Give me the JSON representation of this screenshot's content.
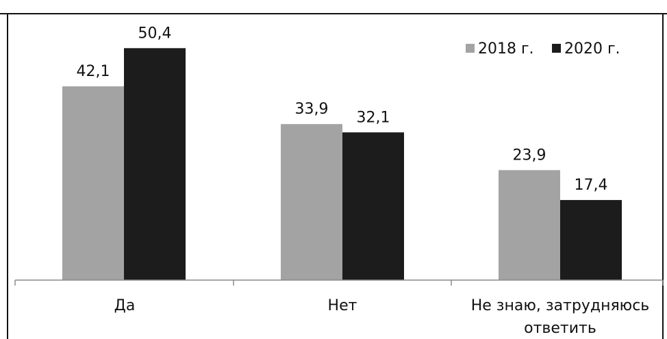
{
  "chart_data": {
    "type": "bar",
    "categories": [
      "Да",
      "Нет",
      "Не знаю, затрудняюсь\nответить"
    ],
    "series": [
      {
        "name": "2018 г.",
        "values": [
          42.1,
          33.9,
          23.9
        ],
        "labels": [
          "42,1",
          "33,9",
          "23,9"
        ]
      },
      {
        "name": "2020 г.",
        "values": [
          50.4,
          32.1,
          17.4
        ],
        "labels": [
          "50,4",
          "32,1",
          "17,4"
        ]
      }
    ],
    "ylim": [
      0,
      60
    ],
    "grid": false,
    "legend_position": "top-right",
    "colors": {
      "series_2018": "#a3a3a3",
      "series_2020": "#1c1c1c",
      "border": "#111111",
      "axis": "#8a8a8a",
      "text": "#111111"
    }
  }
}
